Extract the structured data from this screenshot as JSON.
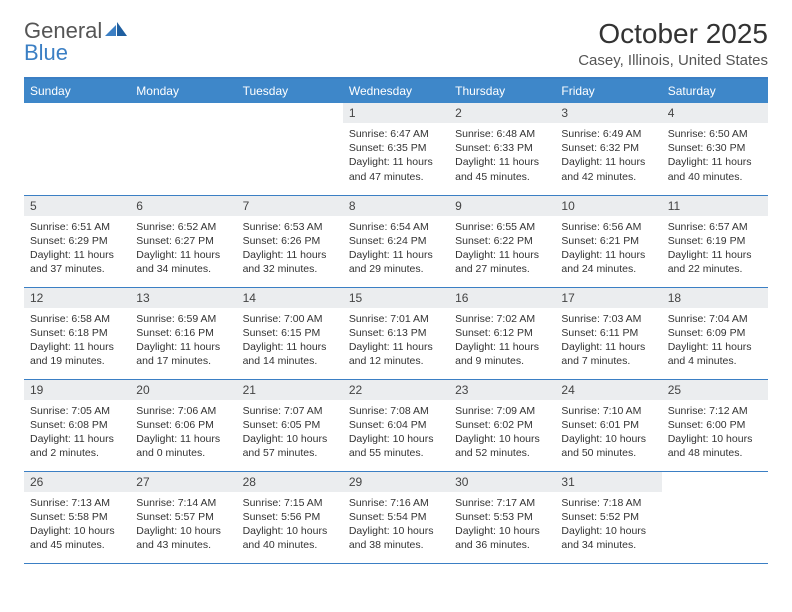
{
  "brand": {
    "part1": "General",
    "part2": "Blue"
  },
  "title": "October 2025",
  "location": "Casey, Illinois, United States",
  "colors": {
    "header_bg": "#3e87c9",
    "header_text": "#ffffff",
    "border": "#3b7fc4",
    "daynum_bg": "#ebedef",
    "daynum_text": "#444444",
    "body_text": "#333333",
    "brand_gray": "#555555",
    "brand_blue": "#3b7fc4"
  },
  "weekdays": [
    "Sunday",
    "Monday",
    "Tuesday",
    "Wednesday",
    "Thursday",
    "Friday",
    "Saturday"
  ],
  "weeks": [
    [
      null,
      null,
      null,
      {
        "n": "1",
        "sr": "6:47 AM",
        "ss": "6:35 PM",
        "dl": "11 hours and 47 minutes."
      },
      {
        "n": "2",
        "sr": "6:48 AM",
        "ss": "6:33 PM",
        "dl": "11 hours and 45 minutes."
      },
      {
        "n": "3",
        "sr": "6:49 AM",
        "ss": "6:32 PM",
        "dl": "11 hours and 42 minutes."
      },
      {
        "n": "4",
        "sr": "6:50 AM",
        "ss": "6:30 PM",
        "dl": "11 hours and 40 minutes."
      }
    ],
    [
      {
        "n": "5",
        "sr": "6:51 AM",
        "ss": "6:29 PM",
        "dl": "11 hours and 37 minutes."
      },
      {
        "n": "6",
        "sr": "6:52 AM",
        "ss": "6:27 PM",
        "dl": "11 hours and 34 minutes."
      },
      {
        "n": "7",
        "sr": "6:53 AM",
        "ss": "6:26 PM",
        "dl": "11 hours and 32 minutes."
      },
      {
        "n": "8",
        "sr": "6:54 AM",
        "ss": "6:24 PM",
        "dl": "11 hours and 29 minutes."
      },
      {
        "n": "9",
        "sr": "6:55 AM",
        "ss": "6:22 PM",
        "dl": "11 hours and 27 minutes."
      },
      {
        "n": "10",
        "sr": "6:56 AM",
        "ss": "6:21 PM",
        "dl": "11 hours and 24 minutes."
      },
      {
        "n": "11",
        "sr": "6:57 AM",
        "ss": "6:19 PM",
        "dl": "11 hours and 22 minutes."
      }
    ],
    [
      {
        "n": "12",
        "sr": "6:58 AM",
        "ss": "6:18 PM",
        "dl": "11 hours and 19 minutes."
      },
      {
        "n": "13",
        "sr": "6:59 AM",
        "ss": "6:16 PM",
        "dl": "11 hours and 17 minutes."
      },
      {
        "n": "14",
        "sr": "7:00 AM",
        "ss": "6:15 PM",
        "dl": "11 hours and 14 minutes."
      },
      {
        "n": "15",
        "sr": "7:01 AM",
        "ss": "6:13 PM",
        "dl": "11 hours and 12 minutes."
      },
      {
        "n": "16",
        "sr": "7:02 AM",
        "ss": "6:12 PM",
        "dl": "11 hours and 9 minutes."
      },
      {
        "n": "17",
        "sr": "7:03 AM",
        "ss": "6:11 PM",
        "dl": "11 hours and 7 minutes."
      },
      {
        "n": "18",
        "sr": "7:04 AM",
        "ss": "6:09 PM",
        "dl": "11 hours and 4 minutes."
      }
    ],
    [
      {
        "n": "19",
        "sr": "7:05 AM",
        "ss": "6:08 PM",
        "dl": "11 hours and 2 minutes."
      },
      {
        "n": "20",
        "sr": "7:06 AM",
        "ss": "6:06 PM",
        "dl": "11 hours and 0 minutes."
      },
      {
        "n": "21",
        "sr": "7:07 AM",
        "ss": "6:05 PM",
        "dl": "10 hours and 57 minutes."
      },
      {
        "n": "22",
        "sr": "7:08 AM",
        "ss": "6:04 PM",
        "dl": "10 hours and 55 minutes."
      },
      {
        "n": "23",
        "sr": "7:09 AM",
        "ss": "6:02 PM",
        "dl": "10 hours and 52 minutes."
      },
      {
        "n": "24",
        "sr": "7:10 AM",
        "ss": "6:01 PM",
        "dl": "10 hours and 50 minutes."
      },
      {
        "n": "25",
        "sr": "7:12 AM",
        "ss": "6:00 PM",
        "dl": "10 hours and 48 minutes."
      }
    ],
    [
      {
        "n": "26",
        "sr": "7:13 AM",
        "ss": "5:58 PM",
        "dl": "10 hours and 45 minutes."
      },
      {
        "n": "27",
        "sr": "7:14 AM",
        "ss": "5:57 PM",
        "dl": "10 hours and 43 minutes."
      },
      {
        "n": "28",
        "sr": "7:15 AM",
        "ss": "5:56 PM",
        "dl": "10 hours and 40 minutes."
      },
      {
        "n": "29",
        "sr": "7:16 AM",
        "ss": "5:54 PM",
        "dl": "10 hours and 38 minutes."
      },
      {
        "n": "30",
        "sr": "7:17 AM",
        "ss": "5:53 PM",
        "dl": "10 hours and 36 minutes."
      },
      {
        "n": "31",
        "sr": "7:18 AM",
        "ss": "5:52 PM",
        "dl": "10 hours and 34 minutes."
      },
      null
    ]
  ],
  "labels": {
    "sunrise": "Sunrise:",
    "sunset": "Sunset:",
    "daylight": "Daylight:"
  }
}
